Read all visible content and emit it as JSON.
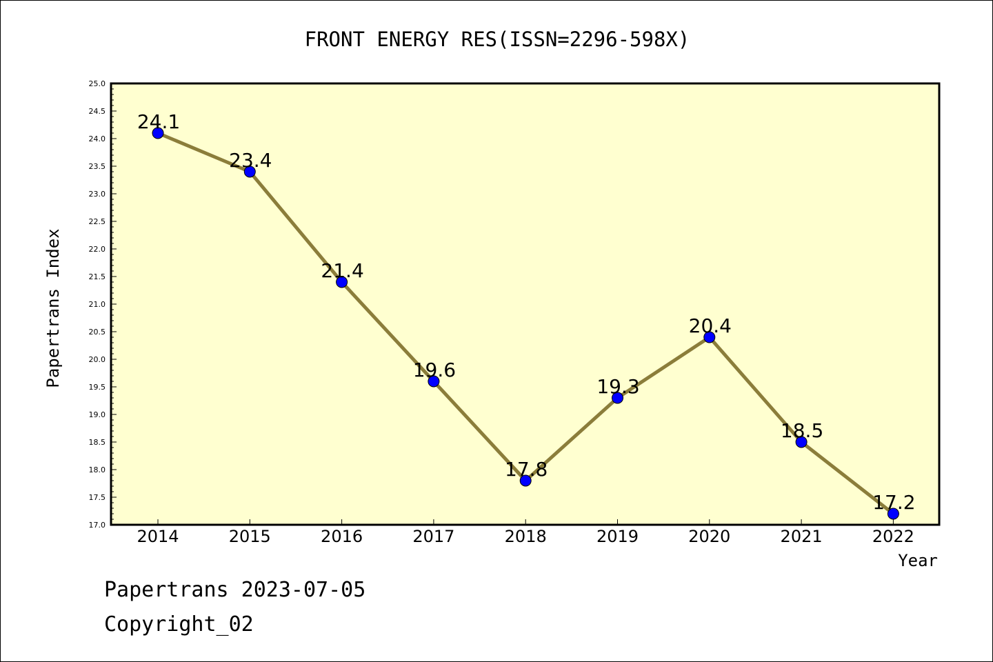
{
  "footer": {
    "line1": "Papertrans 2023-07-05",
    "line2": "Copyright_02"
  },
  "colors": {
    "plot_background": "#ffffd0",
    "line": "#8b7d3a",
    "marker": "#0000ff"
  },
  "chart_data": {
    "type": "line",
    "title": "FRONT ENERGY RES(ISSN=2296-598X)",
    "xlabel": "Year",
    "ylabel": "Papertrans Index",
    "categories": [
      "2014",
      "2015",
      "2016",
      "2017",
      "2018",
      "2019",
      "2020",
      "2021",
      "2022"
    ],
    "series": [
      {
        "values": [
          24.1,
          23.4,
          21.4,
          19.6,
          17.8,
          19.3,
          20.4,
          18.5,
          17.2
        ]
      }
    ],
    "data_labels": [
      "24.1",
      "23.4",
      "21.4",
      "19.6",
      "17.8",
      "19.3",
      "20.4",
      "18.5",
      "17.2"
    ],
    "ylim": [
      17.0,
      25.0
    ],
    "yticks": [
      "17.0",
      "17.5",
      "18.0",
      "18.5",
      "19.0",
      "19.5",
      "20.0",
      "20.5",
      "21.0",
      "21.5",
      "22.0",
      "22.5",
      "23.0",
      "23.5",
      "24.0",
      "24.5",
      "25.0"
    ],
    "grid": false,
    "legend": "none"
  }
}
